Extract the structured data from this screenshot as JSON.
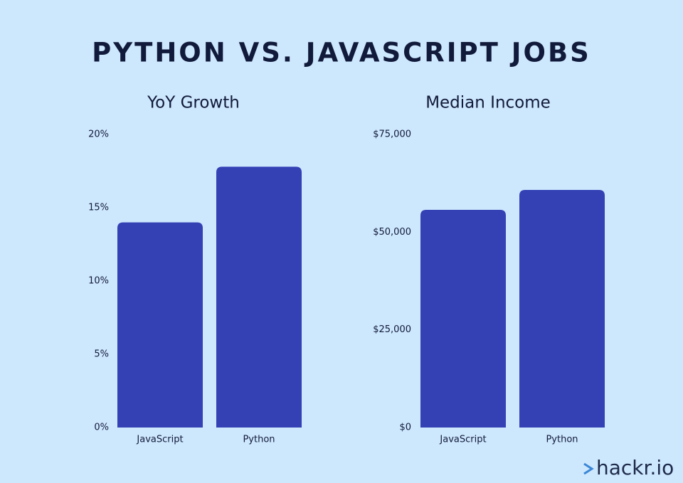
{
  "title": "PYTHON VS. JAVASCRIPT JOBS",
  "logo": "hackr.io",
  "chart_data": [
    {
      "type": "bar",
      "title": "YoY Growth",
      "categories": [
        "JavaScript",
        "Python"
      ],
      "values": [
        14,
        17.8
      ],
      "color": "#3341b5",
      "ylim": [
        0,
        20
      ],
      "yticks": [
        {
          "value": 0,
          "label": "0%"
        },
        {
          "value": 5,
          "label": "5%"
        },
        {
          "value": 10,
          "label": "10%"
        },
        {
          "value": 15,
          "label": "15%"
        },
        {
          "value": 20,
          "label": "20%"
        }
      ],
      "grid": false
    },
    {
      "type": "bar",
      "title": "Median Income",
      "categories": [
        "JavaScript",
        "Python"
      ],
      "values": [
        55700,
        60800
      ],
      "color": "#3341b5",
      "ylim": [
        0,
        75000
      ],
      "yticks": [
        {
          "value": 0,
          "label": "$0"
        },
        {
          "value": 25000,
          "label": "$25,000"
        },
        {
          "value": 50000,
          "label": "$50,000"
        },
        {
          "value": 75000,
          "label": "$75,000"
        }
      ],
      "grid": false
    }
  ]
}
